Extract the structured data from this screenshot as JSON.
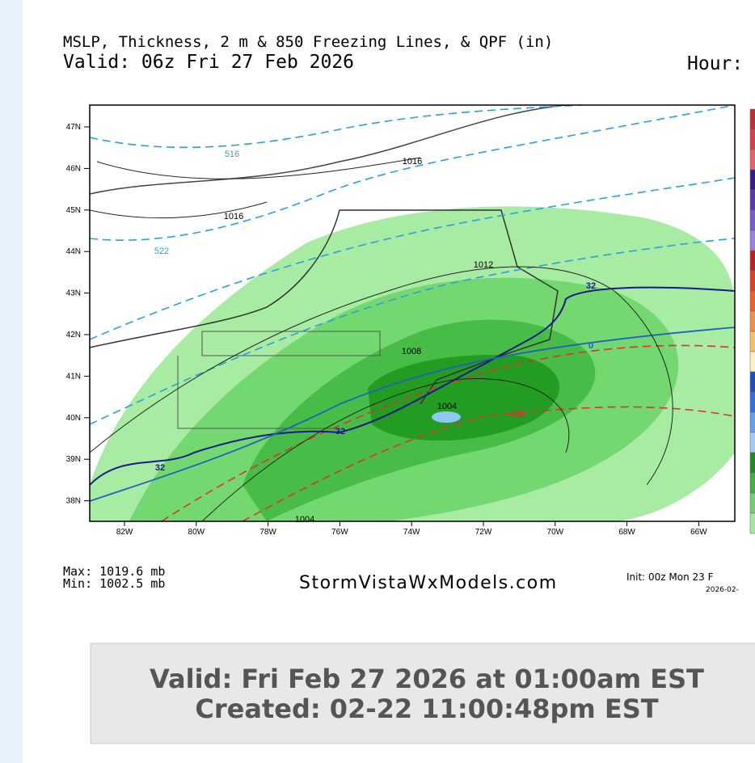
{
  "header": {
    "title": "MSLP, Thickness, 2 m & 850 Freezing Lines, & QPF (in)",
    "valid": "Valid: 06z Fri 27 Feb 2026",
    "hour": "Hour:"
  },
  "map": {
    "lat_labels": [
      "47N",
      "46N",
      "45N",
      "44N",
      "43N",
      "42N",
      "41N",
      "40N",
      "39N",
      "38N"
    ],
    "lon_labels": [
      "82W",
      "80W",
      "78W",
      "76W",
      "74W",
      "72W",
      "70W",
      "68W",
      "66W"
    ],
    "contour_labels": [
      "516",
      "1016",
      "1016",
      "522",
      "1012",
      "32",
      "1008",
      "0",
      "1004",
      "552",
      "32",
      "32",
      "1004"
    ]
  },
  "footer": {
    "max": "Max: 1019.6 mb",
    "min": "Min: 1002.5 mb",
    "site": "StormVistaWxModels.com",
    "init": "Init: 00z Mon 23 F",
    "init_date": "2026-02-"
  },
  "caption": {
    "valid": "Valid: Fri Feb 27 2026 at 01:00am EST",
    "created": "Created: 02-22 11:00:48pm EST"
  }
}
